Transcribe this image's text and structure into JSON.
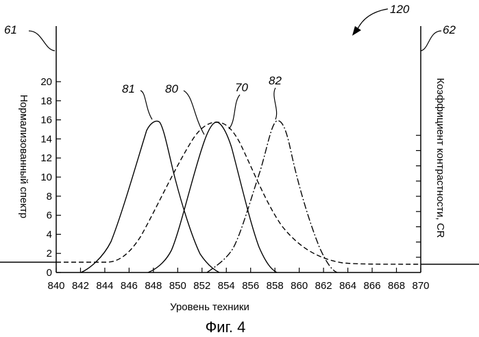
{
  "figure": {
    "ref_number": "120",
    "caption": "Фиг. 4"
  },
  "axes": {
    "left_ref": "61",
    "right_ref": "62",
    "xlabel": "Уровень техники",
    "ylabel_left": "Нормализованный спектр",
    "ylabel_right": "Коэффициент контрастности, CR",
    "x_ticks": [
      "840",
      "842",
      "844",
      "846",
      "848",
      "850",
      "852",
      "854",
      "856",
      "858",
      "860",
      "862",
      "864",
      "866",
      "868",
      "870"
    ],
    "y_ticks": [
      "0",
      "2",
      "4",
      "6",
      "8",
      "10",
      "12",
      "14",
      "16",
      "18",
      "20"
    ]
  },
  "curve_labels": {
    "c81": "81",
    "c80": "80",
    "c70": "70",
    "c82": "82"
  }
}
